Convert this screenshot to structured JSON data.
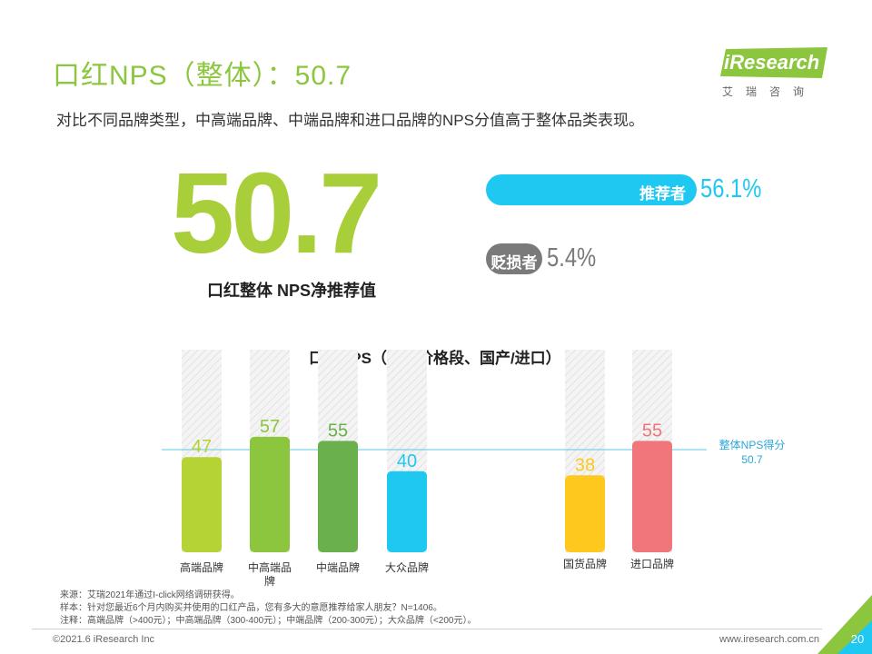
{
  "header": {
    "title": "口红NPS（整体）：50.7",
    "subtitle": "对比不同品牌类型，中高端品牌、中端品牌和进口品牌的NPS分值高于整体品类表现。"
  },
  "logo": {
    "text": "iResearch",
    "cn": "艾瑞咨询",
    "color": "#8cc63f"
  },
  "summary": {
    "nps_value": "50.7",
    "nps_label": "口红整体 NPS净推荐值",
    "promoter_label": "推荐者",
    "promoter_value": "56.1%",
    "detractor_label": "贬损者",
    "detractor_value": "5.4%"
  },
  "chart_data": {
    "type": "bar",
    "title": "口红NPS（不同价格段、国产/进口）",
    "categories": [
      "高端品牌",
      "中高端品牌",
      "中端品牌",
      "大众品牌",
      "国货品牌",
      "进口品牌"
    ],
    "values": [
      47,
      57,
      55,
      40,
      38,
      55
    ],
    "colors": [
      "#b5d334",
      "#8cc63f",
      "#6ab04c",
      "#1ec8f0",
      "#ffc81e",
      "#f0767c"
    ],
    "reference_line": {
      "value": 50.7,
      "label": "整体NPS得分",
      "value_label": "50.7",
      "color": "#5bc8e8"
    },
    "background_bars": true,
    "ylim": [
      0,
      100
    ]
  },
  "notes": {
    "source": "来源：艾瑞2021年通过I-click网络调研获得。",
    "sample": "样本：针对您最近6个月内购买并使用的口红产品，您有多大的意愿推荐给家人朋友？N=1406。",
    "remark": "注释：高端品牌（>400元）；中高端品牌（300-400元）；中端品牌（200-300元）；大众品牌（<200元）。"
  },
  "footer": {
    "copyright": "©2021.6 iResearch Inc",
    "website": "www.iresearch.com.cn",
    "page": "20"
  }
}
